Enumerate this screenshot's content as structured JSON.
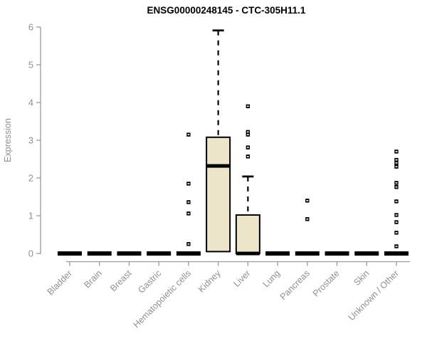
{
  "chart_data": {
    "type": "boxplot",
    "title": "ENSG00000248145 - CTC-305H11.1",
    "ylabel": "Expression",
    "xlabel": "",
    "ylim": [
      0,
      6
    ],
    "yticks": [
      0,
      1,
      2,
      3,
      4,
      5,
      6
    ],
    "grid": false,
    "legend": false,
    "categories": [
      "Bladder",
      "Brain",
      "Breast",
      "Gastric",
      "Hematopoietic cells",
      "Kidney",
      "Liver",
      "Lung",
      "Pancreas",
      "Prostate",
      "Skin",
      "Unknown / Other"
    ],
    "series": [
      {
        "category": "Bladder",
        "min": 0,
        "q1": 0,
        "median": 0,
        "q3": 0,
        "max": 0,
        "outliers": []
      },
      {
        "category": "Brain",
        "min": 0,
        "q1": 0,
        "median": 0,
        "q3": 0,
        "max": 0,
        "outliers": []
      },
      {
        "category": "Breast",
        "min": 0,
        "q1": 0,
        "median": 0,
        "q3": 0,
        "max": 0,
        "outliers": []
      },
      {
        "category": "Gastric",
        "min": 0,
        "q1": 0,
        "median": 0,
        "q3": 0,
        "max": 0,
        "outliers": []
      },
      {
        "category": "Hematopoietic cells",
        "min": 0,
        "q1": 0,
        "median": 0,
        "q3": 0,
        "max": 0,
        "outliers": [
          0.25,
          1.06,
          1.36,
          1.85,
          3.15
        ]
      },
      {
        "category": "Kidney",
        "min": 0.05,
        "q1": 0.05,
        "median": 2.32,
        "q3": 3.08,
        "max": 5.91,
        "outliers": []
      },
      {
        "category": "Liver",
        "min": 0,
        "q1": 0,
        "median": 0,
        "q3": 1.02,
        "max": 2.04,
        "outliers": [
          2.57,
          2.81,
          3.15,
          3.22,
          3.9
        ]
      },
      {
        "category": "Lung",
        "min": 0,
        "q1": 0,
        "median": 0,
        "q3": 0,
        "max": 0,
        "outliers": []
      },
      {
        "category": "Pancreas",
        "min": 0,
        "q1": 0,
        "median": 0,
        "q3": 0,
        "max": 0,
        "outliers": [
          0.91,
          1.4
        ]
      },
      {
        "category": "Prostate",
        "min": 0,
        "q1": 0,
        "median": 0,
        "q3": 0,
        "max": 0,
        "outliers": []
      },
      {
        "category": "Skin",
        "min": 0,
        "q1": 0,
        "median": 0,
        "q3": 0,
        "max": 0,
        "outliers": []
      },
      {
        "category": "Unknown / Other",
        "min": 0,
        "q1": 0,
        "median": 0,
        "q3": 0,
        "max": 0,
        "outliers": [
          0.19,
          0.55,
          0.83,
          1.02,
          1.38,
          1.76,
          1.87,
          2.3,
          2.4,
          2.48,
          2.7
        ]
      }
    ],
    "colors": {
      "box_fill": "#ece5c9",
      "box_stroke": "#000000",
      "whisker": "#000000",
      "outlier": "#000000",
      "axis": "#9a9a9a",
      "tick_label": "#8f8f8f",
      "title": "#000000",
      "background": "#ffffff"
    }
  }
}
